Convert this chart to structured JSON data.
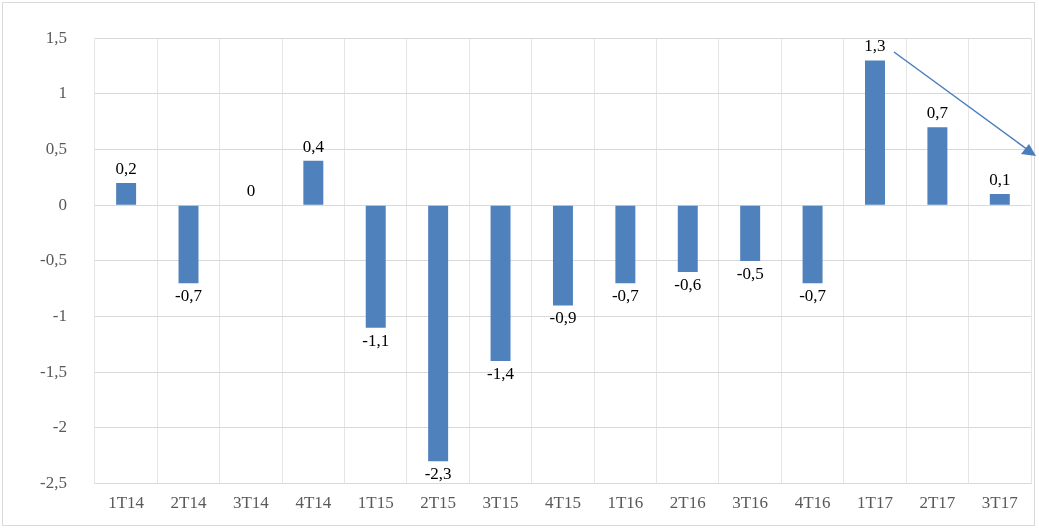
{
  "chart_data": {
    "type": "bar",
    "categories": [
      "1T14",
      "2T14",
      "3T14",
      "4T14",
      "1T15",
      "2T15",
      "3T15",
      "4T15",
      "1T16",
      "2T16",
      "3T16",
      "4T16",
      "1T17",
      "2T17",
      "3T17"
    ],
    "values": [
      0.2,
      -0.7,
      0,
      0.4,
      -1.1,
      -2.3,
      -1.4,
      -0.9,
      -0.7,
      -0.6,
      -0.5,
      -0.7,
      1.3,
      0.7,
      0.1
    ],
    "value_labels": [
      "0,2",
      "-0,7",
      "0",
      "0,4",
      "-1,1",
      "-2,3",
      "-1,4",
      "-0,9",
      "-0,7",
      "-0,6",
      "-0,5",
      "-0,7",
      "1,3",
      "0,7",
      "0,1"
    ],
    "color": "#4f81bd",
    "ylim": [
      -2.5,
      1.5
    ],
    "yticks": [
      {
        "value": -2.5,
        "label": "-2,5"
      },
      {
        "value": -2,
        "label": "-2"
      },
      {
        "value": -1.5,
        "label": "-1,5"
      },
      {
        "value": -1,
        "label": "-1"
      },
      {
        "value": -0.5,
        "label": "-0,5"
      },
      {
        "value": 0,
        "label": "0"
      },
      {
        "value": 0.5,
        "label": "0,5"
      },
      {
        "value": 1,
        "label": "1"
      },
      {
        "value": 1.5,
        "label": "1,5"
      }
    ],
    "grid": true
  }
}
